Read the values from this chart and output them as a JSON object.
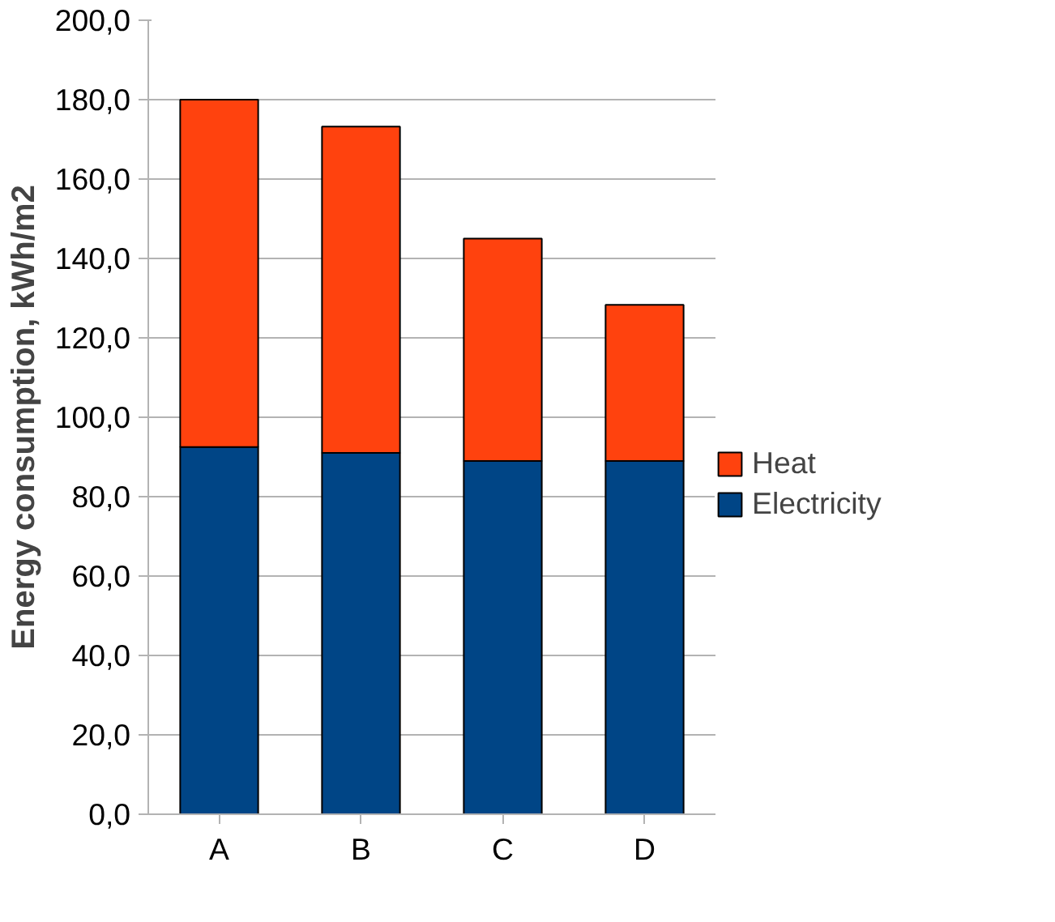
{
  "chart_data": {
    "type": "bar",
    "stacked": true,
    "ylabel": "Energy consumption, kWh/m2",
    "categories": [
      "A",
      "B",
      "C",
      "D"
    ],
    "series": [
      {
        "name": "Electricity",
        "color": "#004586",
        "values": [
          92.5,
          91,
          89,
          89
        ]
      },
      {
        "name": "Heat",
        "color": "#ff420e",
        "values": [
          87.5,
          82.2,
          56,
          39.3
        ]
      }
    ],
    "ylim": [
      0,
      200
    ],
    "yticks": [
      {
        "value": 0,
        "label": "0,0"
      },
      {
        "value": 20,
        "label": "20,0"
      },
      {
        "value": 40,
        "label": "40,0"
      },
      {
        "value": 60,
        "label": "60,0"
      },
      {
        "value": 80,
        "label": "80,0"
      },
      {
        "value": 100,
        "label": "100,0"
      },
      {
        "value": 120,
        "label": "120,0"
      },
      {
        "value": 140,
        "label": "140,0"
      },
      {
        "value": 160,
        "label": "160,0"
      },
      {
        "value": 180,
        "label": "180,0"
      },
      {
        "value": 200,
        "label": "200,0"
      }
    ],
    "grid": "y",
    "legend": "right"
  }
}
